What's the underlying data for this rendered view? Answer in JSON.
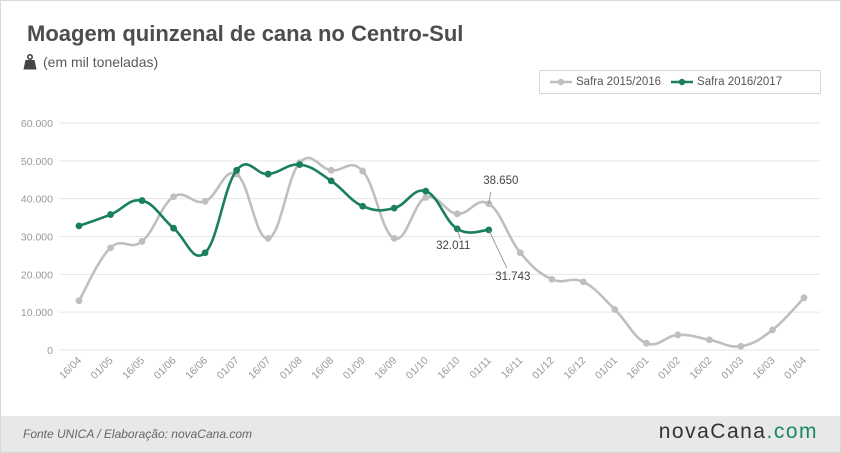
{
  "header": {
    "title": "Moagem quinzenal de cana no Centro-Sul",
    "subtitle": "(em mil toneladas)",
    "subtitle_icon": "weight-icon"
  },
  "footer": {
    "source": "Fonte UNICA / Elaboração: novaCana.com",
    "brand_main": "novaCana",
    "brand_suffix": ".com",
    "brand_color": "#1a8a5e"
  },
  "chart_data": {
    "type": "line",
    "categories": [
      "16/04",
      "01/05",
      "16/05",
      "01/06",
      "16/06",
      "01/07",
      "16/07",
      "01/08",
      "16/08",
      "01/09",
      "16/09",
      "01/10",
      "16/10",
      "01/11",
      "16/11",
      "01/12",
      "16/12",
      "01/01",
      "16/01",
      "01/02",
      "16/02",
      "01/03",
      "16/03",
      "01/04"
    ],
    "ylim": [
      0,
      60000
    ],
    "yticks": [
      0,
      10000,
      20000,
      30000,
      40000,
      50000,
      60000
    ],
    "ytick_labels": [
      "0",
      "10.000",
      "20.000",
      "30.000",
      "40.000",
      "50.000",
      "60.000"
    ],
    "grid": true,
    "legend_position": "top-right",
    "series": [
      {
        "name": "Safra 2015/2016",
        "color": "#bfbfbf",
        "values": [
          13000,
          27000,
          28700,
          40500,
          39300,
          46500,
          29500,
          49500,
          47500,
          47300,
          29500,
          40300,
          36000,
          38650,
          25700,
          18700,
          18000,
          10700,
          1800,
          4000,
          2700,
          1000,
          5300,
          13800
        ]
      },
      {
        "name": "Safra 2016/2017",
        "color": "#1a7f5e",
        "values": [
          32800,
          35800,
          39500,
          32200,
          25700,
          47500,
          46500,
          49000,
          44700,
          38000,
          37500,
          42000,
          32011,
          31743,
          null,
          null,
          null,
          null,
          null,
          null,
          null,
          null,
          null,
          null
        ]
      }
    ],
    "annotations": [
      {
        "text": "38.650",
        "category": "01/11",
        "series": "Safra 2015/2016"
      },
      {
        "text": "32.011",
        "category": "16/10",
        "series": "Safra 2016/2017"
      },
      {
        "text": "31.743",
        "category": "01/11",
        "series": "Safra 2016/2017"
      }
    ]
  }
}
